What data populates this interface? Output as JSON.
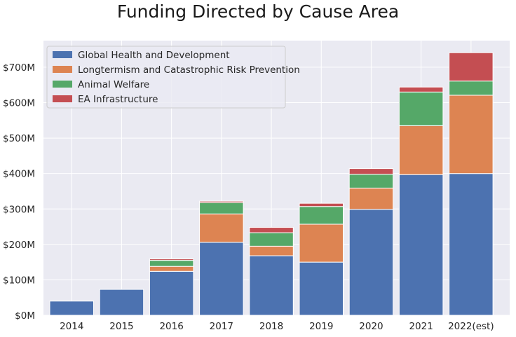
{
  "chart_data": {
    "type": "bar",
    "stacked": true,
    "title": "Funding Directed by Cause Area",
    "xlabel": "",
    "ylabel": "",
    "categories": [
      "2014",
      "2015",
      "2016",
      "2017",
      "2018",
      "2019",
      "2020",
      "2021",
      "2022(est)"
    ],
    "series": [
      {
        "name": "Global Health and Development",
        "color": "#4c72b0",
        "values": [
          40,
          73,
          124,
          206,
          168,
          150,
          299,
          397,
          400
        ]
      },
      {
        "name": "Longtermism and Catastrophic Risk Prevention",
        "color": "#dd8452",
        "values": [
          0,
          0,
          14,
          80,
          27,
          107,
          60,
          138,
          221
        ]
      },
      {
        "name": "Animal Welfare",
        "color": "#55a868",
        "values": [
          0,
          0,
          17,
          32,
          38,
          50,
          39,
          95,
          40
        ]
      },
      {
        "name": "EA Infrastructure",
        "color": "#c44e52",
        "values": [
          0,
          0,
          4,
          4,
          15,
          9,
          16,
          14,
          80
        ]
      }
    ],
    "yticks": [
      0,
      100,
      200,
      300,
      400,
      500,
      600,
      700
    ],
    "ytick_labels": [
      "$0M",
      "$100M",
      "$200M",
      "$300M",
      "$400M",
      "$500M",
      "$600M",
      "$700M"
    ],
    "ylim": [
      0,
      775
    ],
    "grid": true,
    "legend_position": "top-left"
  }
}
